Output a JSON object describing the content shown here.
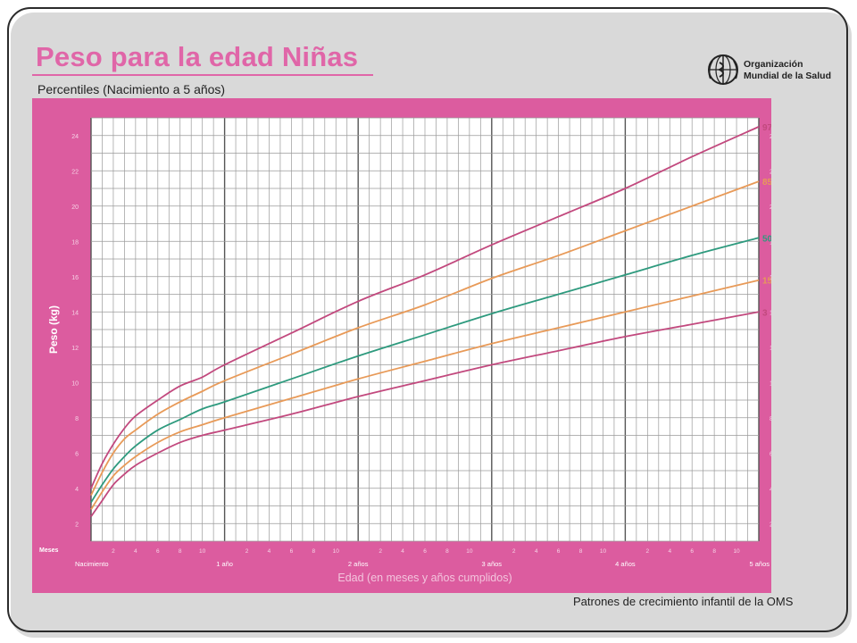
{
  "slide": {
    "title": "Peso para la edad Niñas",
    "subtitle": "Percentiles (Nacimiento a 5 años)",
    "org_line1": "Organización",
    "org_line2": "Mundial de la Salud",
    "org_logo_icon": "who-emblem-icon",
    "footer": "Patrones de crecimiento infantil de la OMS"
  },
  "colors": {
    "frame_pink": "#dc5c9f",
    "title_pink": "#e066a8",
    "p97": "#c2497e",
    "p85": "#e89a58",
    "p50": "#2e9a7e",
    "p15": "#e89a58",
    "p3": "#c2497e"
  },
  "chart_data": {
    "type": "line",
    "title": "Peso para la edad Niñas",
    "subtitle": "Percentiles (Nacimiento a 5 años)",
    "xlabel": "Edad (en meses y años cumplidos)",
    "ylabel": "Peso (kg)",
    "x_row_label": "Meses",
    "xlim": [
      0,
      60
    ],
    "ylim": [
      1,
      25
    ],
    "y_ticks": [
      2,
      4,
      6,
      8,
      10,
      12,
      14,
      16,
      18,
      20,
      22,
      24
    ],
    "month_ticks": [
      2,
      4,
      6,
      8,
      10
    ],
    "year_ticks": [
      {
        "month": 0,
        "label": "Nacimiento"
      },
      {
        "month": 12,
        "label": "1 año"
      },
      {
        "month": 24,
        "label": "2 años"
      },
      {
        "month": 36,
        "label": "3 años"
      },
      {
        "month": 48,
        "label": "4 años"
      },
      {
        "month": 60,
        "label": "5 años"
      }
    ],
    "grid": true,
    "x": [
      0,
      1,
      2,
      3,
      4,
      6,
      8,
      10,
      12,
      18,
      24,
      30,
      36,
      42,
      48,
      54,
      60
    ],
    "series": [
      {
        "name": "97",
        "values": [
          4.0,
          5.4,
          6.5,
          7.4,
          8.1,
          9.0,
          9.8,
          10.3,
          11.0,
          12.8,
          14.6,
          16.1,
          17.8,
          19.4,
          21.0,
          22.8,
          24.5
        ]
      },
      {
        "name": "85",
        "values": [
          3.6,
          4.9,
          6.0,
          6.8,
          7.3,
          8.2,
          8.9,
          9.5,
          10.1,
          11.6,
          13.1,
          14.4,
          15.9,
          17.2,
          18.6,
          20.0,
          21.4
        ]
      },
      {
        "name": "50",
        "values": [
          3.2,
          4.2,
          5.1,
          5.8,
          6.4,
          7.3,
          7.9,
          8.5,
          8.9,
          10.2,
          11.5,
          12.7,
          13.9,
          15.0,
          16.1,
          17.2,
          18.2
        ]
      },
      {
        "name": "15",
        "values": [
          2.8,
          3.8,
          4.7,
          5.3,
          5.8,
          6.6,
          7.2,
          7.6,
          8.0,
          9.1,
          10.2,
          11.2,
          12.2,
          13.1,
          14.0,
          14.9,
          15.8
        ]
      },
      {
        "name": "3",
        "values": [
          2.4,
          3.3,
          4.2,
          4.8,
          5.3,
          6.0,
          6.6,
          7.0,
          7.3,
          8.2,
          9.2,
          10.1,
          11.0,
          11.8,
          12.6,
          13.3,
          14.0
        ]
      }
    ]
  }
}
